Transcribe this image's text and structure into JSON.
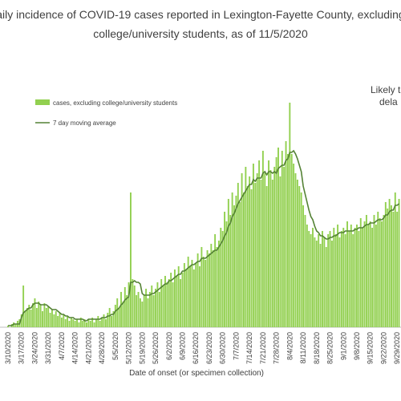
{
  "chart_data": {
    "type": "bar",
    "title_lines": [
      "aily incidence of COVID-19 cases reported in Lexington-Fayette County, excluding",
      "college/university students, as of 11/5/2020"
    ],
    "annotation_lines": [
      "Likely t",
      "dela"
    ],
    "x_label": "Date of onset (or specimen collection)",
    "categories": [
      "3/10/2020",
      null,
      null,
      null,
      null,
      null,
      null,
      "3/17/2020",
      null,
      null,
      null,
      null,
      null,
      null,
      "3/24/2020",
      null,
      null,
      null,
      null,
      null,
      null,
      "3/31/2020",
      null,
      null,
      null,
      null,
      null,
      null,
      "4/7/2020",
      null,
      null,
      null,
      null,
      null,
      null,
      "4/14/2020",
      null,
      null,
      null,
      null,
      null,
      null,
      "4/21/2020",
      null,
      null,
      null,
      null,
      null,
      null,
      "4/28/2020",
      null,
      null,
      null,
      null,
      null,
      null,
      "5/5/2020",
      null,
      null,
      null,
      null,
      null,
      null,
      "5/12/2020",
      null,
      null,
      null,
      null,
      null,
      null,
      "5/19/2020",
      null,
      null,
      null,
      null,
      null,
      null,
      "5/26/2020",
      null,
      null,
      null,
      null,
      null,
      null,
      "6/2/2020",
      null,
      null,
      null,
      null,
      null,
      null,
      "6/9/2020",
      null,
      null,
      null,
      null,
      null,
      null,
      "6/16/2020",
      null,
      null,
      null,
      null,
      null,
      null,
      "6/23/2020",
      null,
      null,
      null,
      null,
      null,
      null,
      "6/30/2020",
      null,
      null,
      null,
      null,
      null,
      null,
      "7/7/2020",
      null,
      null,
      null,
      null,
      null,
      null,
      "7/14/2020",
      null,
      null,
      null,
      null,
      null,
      null,
      "7/21/2020",
      null,
      null,
      null,
      null,
      null,
      null,
      "7/28/2020",
      null,
      null,
      null,
      null,
      null,
      null,
      "8/4/2020",
      null,
      null,
      null,
      null,
      null,
      null,
      "8/11/2020",
      null,
      null,
      null,
      null,
      null,
      null,
      "8/18/2020",
      null,
      null,
      null,
      null,
      null,
      null,
      "8/25/2020",
      null,
      null,
      null,
      null,
      null,
      null,
      "9/1/2020",
      null,
      null,
      null,
      null,
      null,
      null,
      "9/8/2020",
      null,
      null,
      null,
      null,
      null,
      null,
      "9/15/2020",
      null,
      null,
      null,
      null,
      null,
      null,
      "9/22/2020",
      null,
      null,
      null,
      null,
      null,
      null,
      "9/29/2020",
      null
    ],
    "series": [
      {
        "name": "cases, excluding college/university students",
        "kind": "bar",
        "color": "#92d050",
        "values": [
          1,
          0,
          2,
          3,
          2,
          4,
          5,
          8,
          26,
          10,
          12,
          14,
          11,
          15,
          18,
          12,
          16,
          14,
          10,
          15,
          12,
          13,
          9,
          11,
          8,
          10,
          7,
          9,
          6,
          8,
          5,
          7,
          4,
          6,
          5,
          4,
          5,
          3,
          6,
          4,
          5,
          3,
          5,
          4,
          6,
          3,
          5,
          7,
          4,
          6,
          8,
          5,
          9,
          12,
          7,
          10,
          14,
          18,
          12,
          22,
          16,
          25,
          20,
          28,
          84,
          30,
          26,
          20,
          22,
          18,
          16,
          20,
          24,
          18,
          22,
          26,
          20,
          24,
          28,
          22,
          30,
          26,
          32,
          28,
          30,
          34,
          28,
          36,
          32,
          38,
          30,
          34,
          40,
          36,
          44,
          38,
          42,
          36,
          40,
          46,
          38,
          50,
          44,
          42,
          48,
          46,
          52,
          48,
          58,
          50,
          54,
          62,
          60,
          72,
          66,
          80,
          70,
          84,
          76,
          82,
          90,
          78,
          96,
          84,
          100,
          88,
          94,
          86,
          102,
          90,
          96,
          104,
          92,
          110,
          96,
          88,
          104,
          98,
          92,
          100,
          106,
          112,
          94,
          110,
          100,
          116,
          108,
          140,
          108,
          102,
          96,
          92,
          88,
          84,
          76,
          70,
          64,
          60,
          58,
          62,
          56,
          54,
          58,
          52,
          60,
          56,
          50,
          58,
          60,
          54,
          62,
          58,
          64,
          56,
          60,
          62,
          58,
          66,
          60,
          64,
          58,
          62,
          64,
          60,
          68,
          62,
          66,
          70,
          64,
          66,
          62,
          70,
          64,
          72,
          68,
          66,
          70,
          78,
          74,
          80,
          76,
          72,
          84,
          72,
          80
        ]
      },
      {
        "name": "7 day moving average",
        "kind": "line",
        "color": "#548235",
        "values": [
          1,
          1,
          1,
          2,
          2,
          2,
          2,
          6,
          9,
          10,
          11,
          12,
          12,
          14,
          15,
          15,
          15,
          14,
          14,
          14,
          14,
          13,
          12,
          11,
          11,
          11,
          10,
          9,
          8,
          8,
          7,
          7,
          6,
          6,
          6,
          5,
          5,
          5,
          5,
          5,
          4,
          4,
          5,
          5,
          5,
          5,
          5,
          5,
          5,
          6,
          6,
          6,
          7,
          7,
          8,
          8,
          10,
          11,
          12,
          14,
          15,
          17,
          18,
          19,
          28,
          28,
          29,
          28,
          28,
          27,
          21,
          20,
          20,
          20,
          20,
          21,
          21,
          22,
          23,
          24,
          25,
          26,
          27,
          27,
          29,
          29,
          30,
          31,
          32,
          33,
          33,
          35,
          35,
          36,
          37,
          38,
          39,
          39,
          40,
          41,
          41,
          43,
          43,
          43,
          44,
          45,
          46,
          47,
          48,
          48,
          50,
          52,
          54,
          57,
          59,
          63,
          65,
          69,
          71,
          74,
          77,
          79,
          81,
          83,
          85,
          87,
          89,
          89,
          92,
          91,
          93,
          93,
          93,
          96,
          97,
          95,
          97,
          97,
          96,
          97,
          96,
          99,
          100,
          101,
          101,
          104,
          105,
          109,
          109,
          110,
          108,
          105,
          101,
          97,
          88,
          83,
          78,
          73,
          69,
          67,
          63,
          60,
          59,
          57,
          57,
          56,
          55,
          55,
          56,
          56,
          57,
          57,
          58,
          59,
          59,
          59,
          60,
          60,
          60,
          60,
          60,
          61,
          61,
          62,
          62,
          62,
          63,
          64,
          64,
          65,
          65,
          65,
          66,
          67,
          67,
          67,
          68,
          70,
          70,
          72,
          73,
          73,
          76,
          76,
          77
        ]
      }
    ],
    "ylim": [
      0,
      150
    ]
  }
}
